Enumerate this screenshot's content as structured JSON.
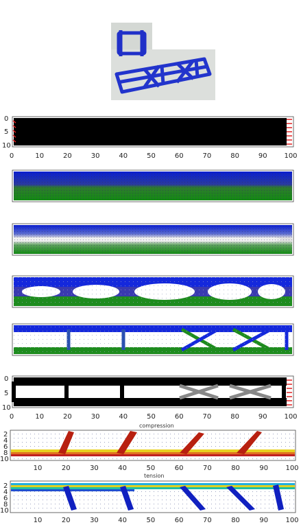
{
  "photo": {
    "frame_color": "#2030c8",
    "background": "#d9dcd9"
  },
  "panels": [
    {
      "id": "p1",
      "kind": "density-initial",
      "yticks": [
        "0",
        "5",
        "10"
      ],
      "show_xticks": true
    },
    {
      "id": "p2",
      "kind": "stress-field-1"
    },
    {
      "id": "p3",
      "kind": "stress-field-2"
    },
    {
      "id": "p4",
      "kind": "stress-field-3"
    },
    {
      "id": "p5",
      "kind": "stress-field-4"
    },
    {
      "id": "p6",
      "kind": "density-final",
      "yticks": [
        "0",
        "5",
        "10"
      ],
      "show_xticks": true
    }
  ],
  "axis_main": {
    "xticks": [
      "0",
      "10",
      "20",
      "30",
      "40",
      "50",
      "60",
      "70",
      "80",
      "90",
      "100"
    ]
  },
  "compression_plot": {
    "title": "compression",
    "yticks": [
      "2",
      "4",
      "6",
      "8",
      "10"
    ],
    "xticks": [
      "10",
      "20",
      "30",
      "40",
      "50",
      "60",
      "70",
      "80",
      "90",
      "100"
    ]
  },
  "tension_plot": {
    "title": "tension",
    "yticks": [
      "2",
      "4",
      "6",
      "8",
      "10"
    ],
    "xticks": [
      "10",
      "20",
      "30",
      "40",
      "50",
      "60",
      "70",
      "80",
      "90",
      "100"
    ]
  },
  "colors": {
    "compression_blue": "#1428dc",
    "tension_green": "#1e8c1e",
    "support_red": "#e02020",
    "density_black": "#000000",
    "field_dots": "#2a2a6a"
  }
}
